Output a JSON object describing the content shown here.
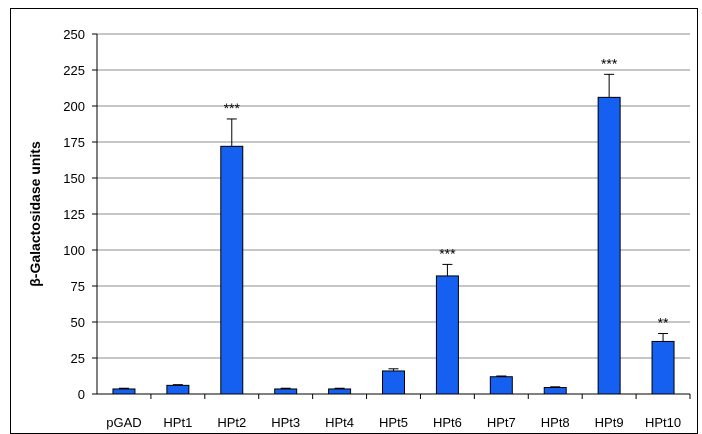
{
  "chart_data": {
    "type": "bar",
    "categories": [
      "pGAD",
      "HPt1",
      "HPt2",
      "HPt3",
      "HPt4",
      "HPt5",
      "HPt6",
      "HPt7",
      "HPt8",
      "HPt9",
      "HPt10"
    ],
    "values": [
      3.5,
      6,
      172,
      3.5,
      3.5,
      16,
      82,
      12,
      4.5,
      206,
      36.5
    ],
    "errors": [
      0.5,
      0.5,
      19,
      0.5,
      0.5,
      1.5,
      8,
      0.5,
      0.5,
      16,
      5.5
    ],
    "significance": [
      "",
      "",
      "***",
      "",
      "",
      "",
      "***",
      "",
      "",
      "***",
      "**"
    ],
    "ylabel": "β-Galactosidase units",
    "xlabel": "",
    "ylim": [
      0,
      250
    ],
    "yticks": [
      0,
      25,
      50,
      75,
      100,
      125,
      150,
      175,
      200,
      225,
      250
    ],
    "grid": true,
    "bar_color": "#1560f0",
    "bar_edge_color": "#000000"
  }
}
